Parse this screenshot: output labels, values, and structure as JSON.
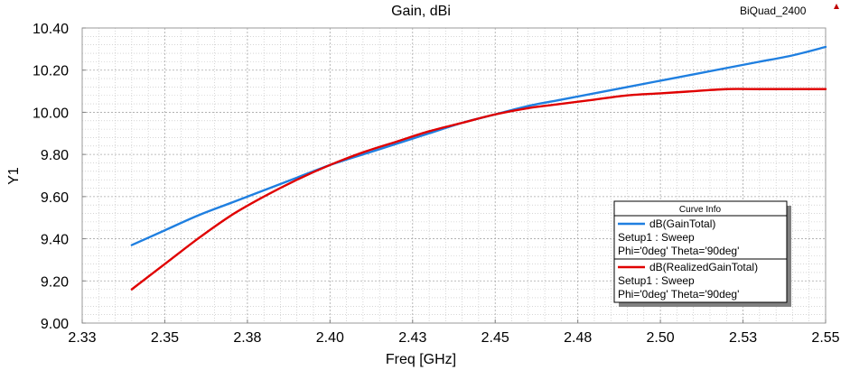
{
  "design_name": "BiQuad_2400",
  "chart_data": {
    "type": "line",
    "title": "Gain, dBi",
    "xlabel": "Freq [GHz]",
    "ylabel": "Y1",
    "xlim": [
      2.325,
      2.55
    ],
    "ylim": [
      9.0,
      10.4
    ],
    "x_ticks": [
      2.325,
      2.35,
      2.375,
      2.4,
      2.425,
      2.45,
      2.475,
      2.5,
      2.525,
      2.55
    ],
    "x_tick_labels": [
      "2.33",
      "2.35",
      "2.38",
      "2.40",
      "2.43",
      "2.45",
      "2.48",
      "2.50",
      "2.53",
      "2.55"
    ],
    "y_ticks": [
      9.0,
      9.2,
      9.4,
      9.6,
      9.8,
      10.0,
      10.2,
      10.4
    ],
    "y_tick_labels": [
      "9.00",
      "9.20",
      "9.40",
      "9.60",
      "9.80",
      "10.00",
      "10.20",
      "10.40"
    ],
    "grid": true,
    "legend_position": "lower-right",
    "legend_title": "Curve Info",
    "series": [
      {
        "name": "dB(GainTotal)",
        "setup": "Setup1 : Sweep",
        "params": "Phi='0deg' Theta='90deg'",
        "color": "#1f7fe0",
        "x": [
          2.34,
          2.35,
          2.36,
          2.37,
          2.38,
          2.39,
          2.4,
          2.41,
          2.42,
          2.43,
          2.44,
          2.45,
          2.46,
          2.47,
          2.48,
          2.49,
          2.5,
          2.51,
          2.52,
          2.53,
          2.54,
          2.55
        ],
        "y": [
          9.37,
          9.44,
          9.51,
          9.57,
          9.63,
          9.69,
          9.75,
          9.8,
          9.85,
          9.9,
          9.95,
          9.99,
          10.03,
          10.06,
          10.09,
          10.12,
          10.15,
          10.18,
          10.21,
          10.24,
          10.27,
          10.31
        ]
      },
      {
        "name": "dB(RealizedGainTotal)",
        "setup": "Setup1 : Sweep",
        "params": "Phi='0deg' Theta='90deg'",
        "color": "#e00000",
        "x": [
          2.34,
          2.35,
          2.36,
          2.37,
          2.38,
          2.39,
          2.4,
          2.41,
          2.42,
          2.43,
          2.44,
          2.45,
          2.46,
          2.47,
          2.48,
          2.49,
          2.5,
          2.51,
          2.52,
          2.53,
          2.54,
          2.55
        ],
        "y": [
          9.16,
          9.28,
          9.4,
          9.51,
          9.6,
          9.68,
          9.75,
          9.81,
          9.86,
          9.91,
          9.95,
          9.99,
          10.02,
          10.04,
          10.06,
          10.08,
          10.09,
          10.1,
          10.11,
          10.11,
          10.11,
          10.11
        ]
      }
    ]
  }
}
